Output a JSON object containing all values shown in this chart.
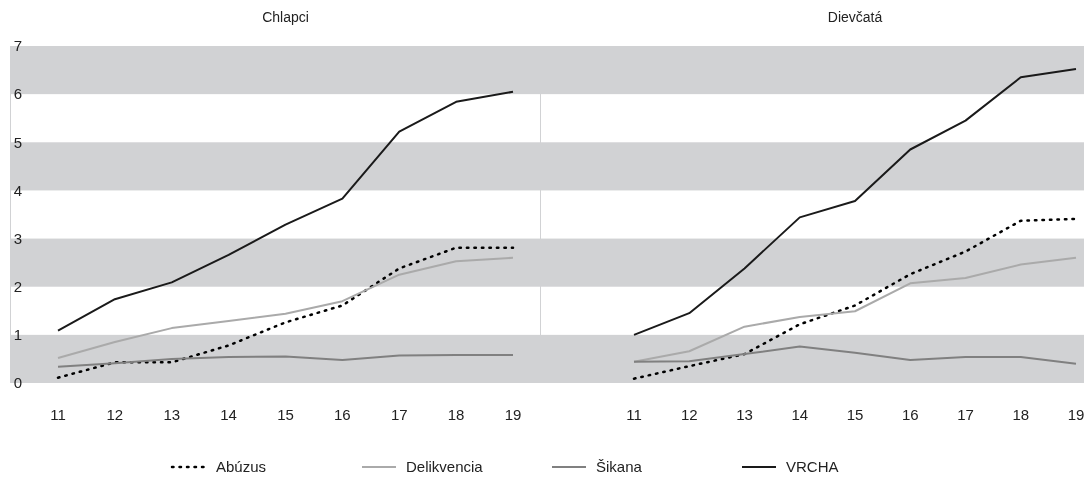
{
  "chart_data": [
    {
      "type": "line",
      "title": "Chlapci",
      "categories": [
        "11",
        "12",
        "13",
        "14",
        "15",
        "16",
        "17",
        "18",
        "19"
      ],
      "series": [
        {
          "name": "Abúzus",
          "color": "#000000",
          "line_style": "dotted",
          "values": [
            0.11,
            0.43,
            0.43,
            0.78,
            1.26,
            1.61,
            2.38,
            2.81,
            2.81
          ]
        },
        {
          "name": "Delikvencia",
          "color": "#aaaaaa",
          "line_style": "solid",
          "values": [
            0.52,
            0.85,
            1.14,
            1.29,
            1.44,
            1.7,
            2.25,
            2.53,
            2.6
          ]
        },
        {
          "name": "Šikana",
          "color": "#808080",
          "line_style": "solid",
          "values": [
            0.34,
            0.41,
            0.5,
            0.54,
            0.55,
            0.48,
            0.57,
            0.58,
            0.58
          ]
        },
        {
          "name": "VRCHA",
          "color": "#1a1a1a",
          "line_style": "solid",
          "values": [
            1.09,
            1.74,
            2.09,
            2.66,
            3.29,
            3.83,
            5.22,
            5.84,
            6.05
          ]
        }
      ],
      "ylim": [
        0,
        7
      ],
      "yticks": [
        0,
        1,
        2,
        3,
        4,
        5,
        6,
        7
      ],
      "bands": [
        {
          "axis": "y",
          "from": 0,
          "to": 1,
          "color": "#d1d2d4"
        },
        {
          "axis": "y",
          "from": 2,
          "to": 3,
          "color": "#d1d2d4"
        },
        {
          "axis": "y",
          "from": 4,
          "to": 5,
          "color": "#d1d2d4"
        },
        {
          "axis": "y",
          "from": 6,
          "to": 7,
          "color": "#d1d2d4"
        }
      ],
      "legend": "bottom",
      "grid": false
    },
    {
      "type": "line",
      "title": "Dievčatá",
      "categories": [
        "11",
        "12",
        "13",
        "14",
        "15",
        "16",
        "17",
        "18",
        "19"
      ],
      "series": [
        {
          "color": "#000000",
          "line_style": "dotted",
          "values": [
            0.09,
            0.35,
            0.6,
            1.22,
            1.61,
            2.26,
            2.73,
            3.37,
            3.41
          ]
        },
        {
          "color": "#aaaaaa",
          "line_style": "solid",
          "values": [
            0.44,
            0.66,
            1.17,
            1.37,
            1.49,
            2.07,
            2.18,
            2.46,
            2.6
          ]
        },
        {
          "color": "#808080",
          "line_style": "solid",
          "values": [
            0.44,
            0.45,
            0.6,
            0.76,
            0.63,
            0.48,
            0.54,
            0.54,
            0.4
          ]
        },
        {
          "color": "#1a1a1a",
          "line_style": "solid",
          "values": [
            1.0,
            1.45,
            2.38,
            3.44,
            3.78,
            4.85,
            5.45,
            6.35,
            6.52
          ]
        }
      ],
      "ylim": [
        0,
        7
      ],
      "yticks": [
        0,
        1,
        2,
        3,
        4,
        5,
        6,
        7
      ],
      "bands": [
        {
          "axis": "y",
          "from": 0,
          "to": 1,
          "color": "#d1d2d4"
        },
        {
          "axis": "y",
          "from": 2,
          "to": 3,
          "color": "#d1d2d4"
        },
        {
          "axis": "y",
          "from": 4,
          "to": 5,
          "color": "#d1d2d4"
        },
        {
          "axis": "y",
          "from": 6,
          "to": 7,
          "color": "#d1d2d4"
        }
      ],
      "tick_labels": "x",
      "legend": false,
      "grid": false
    }
  ]
}
